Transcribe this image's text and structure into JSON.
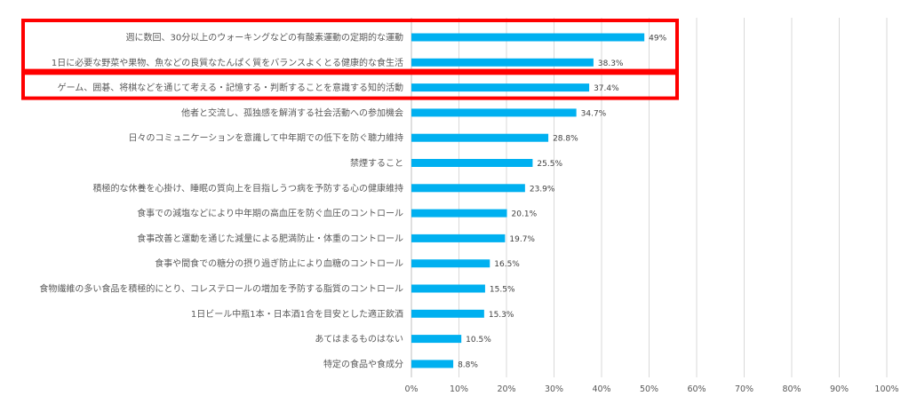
{
  "chart_data": {
    "type": "bar",
    "orientation": "horizontal",
    "categories": [
      "週に数回、30分以上のウォーキングなどの有酸素運動の定期的な運動",
      "1日に必要な野菜や果物、魚などの良質なたんぱく質をバランスよくとる健康的な食生活",
      "ゲーム、囲碁、将棋などを通じて考える・記憶する・判断することを意識する知的活動",
      "他者と交流し、孤独感を解消する社会活動への参加機会",
      "日々のコミュニケーションを意識して中年期での低下を防ぐ聴力維持",
      "禁煙すること",
      "積極的な休養を心掛け、睡眠の質向上を目指しうつ病を予防する心の健康維持",
      "食事での減塩などにより中年期の高血圧を防ぐ血圧のコントロール",
      "食事改善と運動を通じた減量による肥満防止・体重のコントロール",
      "食事や間食での糖分の摂り過ぎ防止により血糖のコントロール",
      "食物繊維の多い食品を積極的にとり、コレステロールの増加を予防する脂質のコントロール",
      "1日ビール中瓶1本・日本酒1合を目安とした適正飲酒",
      "あてはまるものはない",
      "特定の食品や食成分"
    ],
    "values": [
      49,
      38.3,
      37.4,
      34.7,
      28.8,
      25.5,
      23.9,
      20.1,
      19.7,
      16.5,
      15.5,
      15.3,
      10.5,
      8.8
    ],
    "value_labels": [
      "49%",
      "38.3%",
      "37.4%",
      "34.7%",
      "28.8%",
      "25.5%",
      "23.9%",
      "20.1%",
      "19.7%",
      "16.5%",
      "15.5%",
      "15.3%",
      "10.5%",
      "8.8%"
    ],
    "xlim": [
      0,
      100
    ],
    "x_ticks": [
      "0%",
      "10%",
      "20%",
      "30%",
      "40%",
      "50%",
      "60%",
      "70%",
      "80%",
      "90%",
      "100%"
    ],
    "grid": "vertical",
    "bar_color": "#00b0f0",
    "highlight_color": "#ff0000",
    "highlight_groups": [
      [
        0,
        1
      ],
      [
        2
      ]
    ]
  }
}
